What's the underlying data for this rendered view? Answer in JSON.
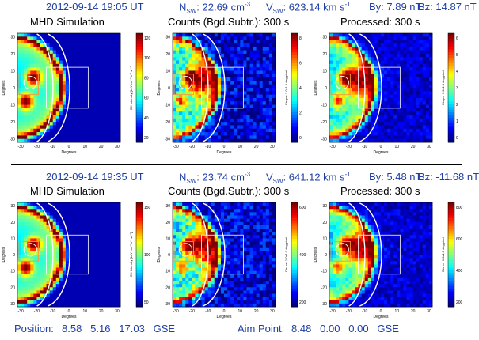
{
  "rows": [
    {
      "header": {
        "datetime": "2012-09-14 19:05 UT",
        "nsw_label": "N",
        "nsw_sub": "SW",
        "nsw_value": ": 22.69 cm",
        "nsw_unit_sup": "-3",
        "vsw_label": "V",
        "vsw_sub": "SW",
        "vsw_value": ": 623.14 km s",
        "vsw_unit_sup": "-1",
        "by": "By: 7.89 nT",
        "bz": "Bz: 14.87 nT"
      },
      "panels": [
        {
          "title": "MHD Simulation",
          "cbar_ticks": [
            "120",
            "100",
            "80",
            "60",
            "40",
            "20"
          ],
          "cbar_label": "CX Intensity [keV cm⁻² s⁻¹ sr⁻¹]",
          "kind": "sim"
        },
        {
          "title": "Counts (Bgd.Subtr.): 300 s",
          "cbar_ticks": [
            "8",
            "6",
            "4",
            "2",
            "0"
          ],
          "cbar_label": "Cts per 1.0x1.0 deg pixel",
          "kind": "counts"
        },
        {
          "title": "Processed: 300 s",
          "cbar_ticks": [
            "6",
            "5",
            "4",
            "3",
            "2",
            "1",
            "0"
          ],
          "cbar_label": "Cts per 1.0x1.0 deg pixel",
          "kind": "proc"
        }
      ]
    },
    {
      "header": {
        "datetime": "2012-09-14 19:35 UT",
        "nsw_label": "N",
        "nsw_sub": "SW",
        "nsw_value": ": 23.74 cm",
        "nsw_unit_sup": "-3",
        "vsw_label": "V",
        "vsw_sub": "SW",
        "vsw_value": ": 641.12 km s",
        "vsw_unit_sup": "-1",
        "by": "By: 5.48 nT",
        "bz": "Bz: -11.68 nT"
      },
      "panels": [
        {
          "title": "MHD Simulation",
          "cbar_ticks": [
            "150",
            "100",
            "50"
          ],
          "cbar_label": "CX Intensity [keV cm⁻² s⁻¹ sr⁻¹]",
          "kind": "sim"
        },
        {
          "title": "Counts (Bgd.Subtr.): 300 s",
          "cbar_ticks": [
            "600",
            "400",
            "200"
          ],
          "cbar_label": "Cts per 1.0x1.0 deg pixel",
          "kind": "counts"
        },
        {
          "title": "Processed: 300 s",
          "cbar_ticks": [
            "800",
            "600",
            "400",
            "200"
          ],
          "cbar_label": "Cts per 1.0x1.0 deg pixel",
          "kind": "proc"
        }
      ]
    }
  ],
  "axes": {
    "xlabel": "Degrees",
    "ylabel": "Degrees",
    "xticks": [
      "-30",
      "-20",
      "-10",
      "0",
      "10",
      "20",
      "30"
    ],
    "yticks": [
      "30",
      "20",
      "10",
      "0",
      "-10",
      "-20",
      "-30"
    ]
  },
  "footer": {
    "position_label": "Position:",
    "position_values": "8.58   5.16   17.03   GSE",
    "aim_label": "Aim Point:",
    "aim_values": "8.48   0.00   0.00   GSE"
  },
  "colors": {
    "header_text": "#1f3fa6",
    "overlay_lines": "#ffffff",
    "fov_box": "#ff9a2e",
    "colormap": "jet"
  }
}
